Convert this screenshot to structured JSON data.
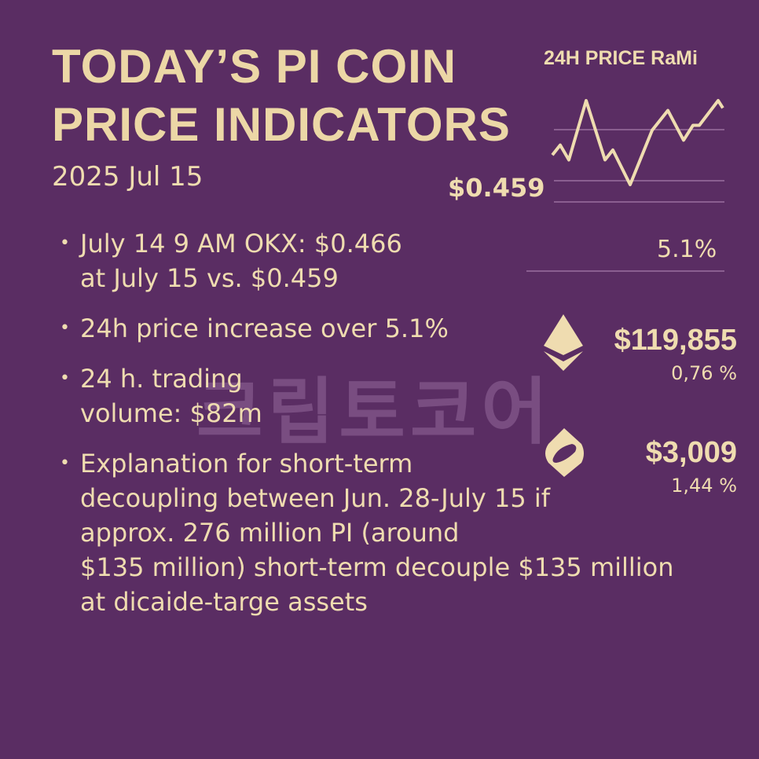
{
  "header": {
    "title_line1": "TODAY’S PI COIN",
    "title_line2": "PRICE INDICATORS",
    "date": "2025 Jul 15"
  },
  "range_panel": {
    "title": "24H PRICE RaMi",
    "current_price": "$0.459",
    "change": "5.1%",
    "sparkline": [
      4,
      6,
      3,
      15,
      3,
      5,
      -2,
      9,
      10,
      13,
      7,
      10,
      10,
      15,
      13.5
    ]
  },
  "bullets": [
    {
      "line1": "July 14 9 AM OKX: $0.466",
      "line2": "at July 15 vs. $0.459"
    },
    {
      "line1": "24h price increase over 5.1%"
    },
    {
      "line1": "24 h. trading",
      "line2": "volume: $82m"
    },
    {
      "line1": "Explanation for short-term",
      "line2": "decoupling between Jun. 28-July 15 if",
      "line3": "approx. 276 million PI (around",
      "line4": "$135 million) short-term decouple $135 million",
      "line5": "at dicaide-targe assets"
    }
  ],
  "coins": [
    {
      "icon": "ethereum-icon",
      "price": "$119,855",
      "change": "0,76 %"
    },
    {
      "icon": "coin-icon",
      "price": "$3,009",
      "change": "1,44 %"
    }
  ],
  "watermark": "크립토코어",
  "colors": {
    "background": "#5a2d63",
    "text": "#efdcb0"
  }
}
